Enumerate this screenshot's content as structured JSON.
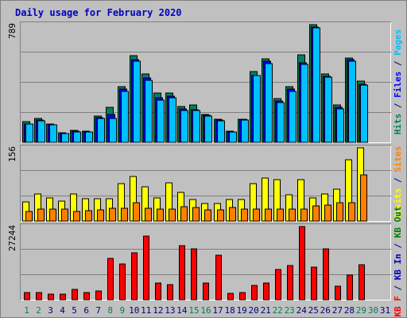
{
  "chart_data": {
    "type": "bar",
    "title": "Daily usage for February 2020",
    "categories": [
      "1",
      "2",
      "3",
      "4",
      "5",
      "6",
      "7",
      "8",
      "9",
      "10",
      "11",
      "12",
      "13",
      "14",
      "15",
      "16",
      "17",
      "18",
      "19",
      "20",
      "21",
      "22",
      "23",
      "24",
      "25",
      "26",
      "27",
      "28",
      "29",
      "30",
      "31"
    ],
    "weekend_days": [
      "1",
      "2",
      "8",
      "9",
      "15",
      "16",
      "22",
      "23",
      "29",
      "30"
    ],
    "weekend_color": "#00805c",
    "weekday_color": "#000080",
    "panels": [
      {
        "id": "top",
        "ymax_label": "789",
        "ylim": [
          0,
          789
        ],
        "side_label": [
          {
            "text": "Hits",
            "color": "#00805c"
          },
          {
            "text": " / ",
            "color": "#000080"
          },
          {
            "text": "Files",
            "color": "#0000ff"
          },
          {
            "text": " / ",
            "color": "#000080"
          },
          {
            "text": "Pages",
            "color": "#00c0ff"
          }
        ],
        "series": [
          {
            "name": "Hits",
            "color": "#00805c",
            "values": [
              138,
              160,
              125,
              64,
              78,
              76,
              178,
              237,
              375,
              580,
              461,
              328,
              333,
              240,
              249,
              187,
              153,
              77,
              157,
              474,
              561,
              291,
              375,
              587,
              789,
              458,
              250,
              566,
              413,
              0,
              0
            ]
          },
          {
            "name": "Files",
            "color": "#0000ff",
            "values": [
              124,
              149,
              117,
              58,
              72,
              70,
              163,
              187,
              355,
              555,
              432,
              297,
              310,
              224,
              217,
              181,
              147,
              71,
              152,
              447,
              543,
              276,
              355,
              534,
              771,
              443,
              234,
              556,
              389,
              0,
              0
            ]
          },
          {
            "name": "Pages",
            "color": "#00c0ff",
            "values": [
              123,
              145,
              115,
              56,
              70,
              67,
              159,
              160,
              339,
              542,
              418,
              285,
              300,
              215,
              213,
              176,
              144,
              69,
              150,
              447,
              528,
              264,
              340,
              524,
              769,
              438,
              225,
              545,
              386,
              0,
              0
            ]
          }
        ]
      },
      {
        "id": "middle",
        "ymax_label": "156",
        "ylim": [
          0,
          156
        ],
        "side_label": [
          {
            "text": "Visits",
            "color": "#ffff00"
          },
          {
            "text": " / ",
            "color": "#000080"
          },
          {
            "text": "Sites",
            "color": "#ff8000"
          }
        ],
        "series": [
          {
            "name": "Visits",
            "color": "#ffff00",
            "values": [
              40,
              57,
              50,
              42,
              57,
              48,
              47,
              47,
              80,
              95,
              73,
              49,
              81,
              61,
              45,
              38,
              38,
              45,
              45,
              80,
              92,
              88,
              56,
              89,
              49,
              58,
              67,
              131,
              156,
              0,
              0
            ]
          },
          {
            "name": "Sites",
            "color": "#ff8000",
            "values": [
              20,
              25,
              25,
              26,
              20,
              22,
              24,
              27,
              27,
              39,
              27,
              26,
              26,
              30,
              29,
              24,
              24,
              28,
              26,
              25,
              26,
              25,
              25,
              26,
              32,
              34,
              39,
              39,
              98,
              0,
              0
            ]
          }
        ]
      },
      {
        "id": "bottom",
        "ymax_label": "27244",
        "ylim": [
          0,
          27244
        ],
        "side_label": [
          {
            "text": "KB F",
            "color": "#ff0000"
          },
          {
            "text": " / ",
            "color": "#000080"
          },
          {
            "text": "KB In",
            "color": "#0000c0"
          },
          {
            "text": " / ",
            "color": "#000080"
          },
          {
            "text": "KB Out",
            "color": "#008000"
          }
        ],
        "series": [
          {
            "name": "KB F",
            "color": "#ff0000",
            "values": [
              2700,
              2700,
              2200,
              2200,
              3800,
              2700,
              3300,
              15500,
              13200,
              17500,
              23800,
              6100,
              5600,
              20000,
              18900,
              6100,
              16700,
              2500,
              2700,
              5400,
              6300,
              11300,
              12700,
              27244,
              12200,
              19100,
              5000,
              9200,
              12900,
              0,
              0
            ]
          }
        ]
      }
    ]
  }
}
